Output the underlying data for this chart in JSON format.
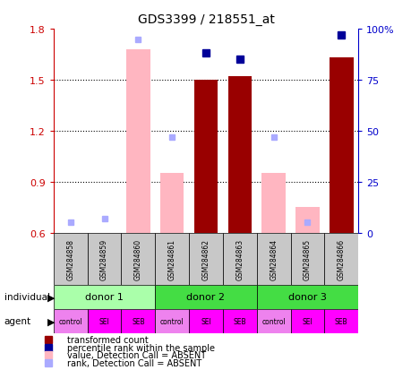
{
  "title": "GDS3399 / 218551_at",
  "samples": [
    "GSM284858",
    "GSM284859",
    "GSM284860",
    "GSM284861",
    "GSM284862",
    "GSM284863",
    "GSM284864",
    "GSM284865",
    "GSM284866"
  ],
  "red_bars": [
    null,
    null,
    null,
    null,
    1.5,
    1.52,
    null,
    null,
    1.63
  ],
  "pink_bars": [
    null,
    null,
    1.68,
    0.95,
    null,
    null,
    0.95,
    0.75,
    null
  ],
  "blue_squares_pct": [
    null,
    null,
    null,
    null,
    88,
    85,
    null,
    null,
    97
  ],
  "light_blue_squares_pct": [
    5,
    7,
    95,
    47,
    null,
    null,
    47,
    5,
    null
  ],
  "ylim_left": [
    0.6,
    1.8
  ],
  "ylim_right": [
    0,
    100
  ],
  "yticks_left": [
    0.6,
    0.9,
    1.2,
    1.5,
    1.8
  ],
  "yticks_right": [
    0,
    25,
    50,
    75,
    100
  ],
  "donor_groups": [
    {
      "label": "donor 1",
      "start": 0,
      "end": 2,
      "color": "#AAFFAA"
    },
    {
      "label": "donor 2",
      "start": 3,
      "end": 5,
      "color": "#44DD44"
    },
    {
      "label": "donor 3",
      "start": 6,
      "end": 8,
      "color": "#44DD44"
    }
  ],
  "agents": [
    "control",
    "SEI",
    "SEB",
    "control",
    "SEI",
    "SEB",
    "control",
    "SEI",
    "SEB"
  ],
  "agent_color_control": "#EE82EE",
  "agent_color_sei_seb": "#FF00FF",
  "bar_width": 0.7,
  "red_color": "#990000",
  "pink_color": "#FFB6C1",
  "blue_color": "#000099",
  "light_blue_color": "#AAAAFF",
  "gray_color": "#C8C8C8",
  "ylabel_left_color": "#CC0000",
  "ylabel_right_color": "#0000CC"
}
